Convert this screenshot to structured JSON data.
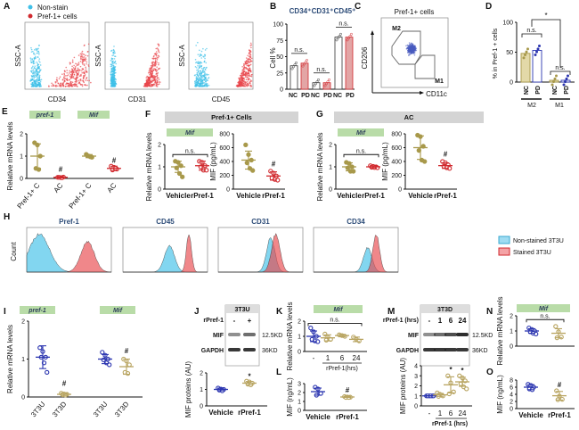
{
  "colors": {
    "olive": "#a8994b",
    "red": "#d12a2f",
    "blue": "#2b35b0",
    "tan": "#b8a460",
    "cyan": "#3fc0e8",
    "pink": "#e8464c",
    "gene_box": "#b9dca8",
    "header_box": "#d4d4d4",
    "bar_red": "#e3a5a5"
  },
  "panel_letters": [
    "A",
    "B",
    "C",
    "D",
    "E",
    "F",
    "G",
    "H",
    "I",
    "J",
    "K",
    "L",
    "M",
    "N",
    "O"
  ],
  "A": {
    "legend": [
      "Non-stain",
      "Pref-1+ cells"
    ],
    "ylabel": "SSC-A",
    "xlabels": [
      "CD34",
      "CD31",
      "CD45"
    ]
  },
  "B": {
    "ylabel": "Cell %",
    "yticks": [
      0,
      25,
      50,
      75,
      100
    ],
    "titles": [
      "CD34⁺",
      "CD31⁺",
      "CD45⁺"
    ],
    "group_labels": [
      "NC",
      "PD"
    ],
    "sig": "n.s.",
    "chart_data": {
      "type": "bar",
      "categories": [
        "CD34+",
        "CD31+",
        "CD45+"
      ],
      "ylim": [
        0,
        100
      ],
      "series": [
        {
          "name": "NC",
          "values": [
            36,
            10,
            80
          ]
        },
        {
          "name": "PD",
          "values": [
            40,
            10,
            80
          ]
        }
      ]
    }
  },
  "C": {
    "title": "Pref-1+ cells",
    "ylabel": "CD206",
    "xlabel": "CD11c",
    "gates": [
      "M2",
      "M1"
    ]
  },
  "D": {
    "ylabel": "% in Pref-1 + cells",
    "yticks": [
      0,
      50,
      100
    ],
    "group_labels": [
      "NC",
      "PD",
      "NC",
      "PD"
    ],
    "subsets": [
      "M2",
      "M1"
    ],
    "sig_main": "*",
    "sig_m2": "n.s.",
    "sig_m1": "n.s.",
    "chart_data": {
      "type": "bar",
      "categories": [
        "M2 NC",
        "M2 PD",
        "M1 NC",
        "M1 PD"
      ],
      "values": [
        48,
        53,
        3,
        3
      ],
      "ylim": [
        0,
        100
      ]
    }
  },
  "E": {
    "genes": [
      "pref-1",
      "Mif"
    ],
    "ylabel": "Relative mRNA levels",
    "yticks": [
      0,
      1,
      2
    ],
    "ymax": 2,
    "groups": [
      {
        "label": "Pref-1+ C",
        "mean": 1.0,
        "sd": 0.55,
        "points": [
          1.6,
          1.5,
          1.0,
          0.45,
          0.4
        ],
        "style": "olive"
      },
      {
        "label": "AC",
        "mean": 0.05,
        "sd": 0.03,
        "points": [
          0.05,
          0.04,
          0.06,
          0.05,
          0.03
        ],
        "style": "red"
      },
      {
        "label": "Pref-1+ C",
        "mean": 1.0,
        "sd": 0.07,
        "points": [
          1.08,
          1.0,
          0.95,
          1.02,
          0.97
        ],
        "style": "olive"
      },
      {
        "label": "AC",
        "mean": 0.45,
        "sd": 0.1,
        "points": [
          0.55,
          0.5,
          0.42,
          0.38,
          0.45
        ],
        "style": "red"
      }
    ],
    "marks": [
      {
        "text": "#",
        "group": 1,
        "y": 0.3
      },
      {
        "text": "#",
        "group": 3,
        "y": 0.7
      }
    ]
  },
  "F": {
    "header": "Pref-1+ Cells",
    "gene": "Mif",
    "mrna": {
      "ylabel": "Relative mRNA levels",
      "yticks": [
        0,
        1,
        2
      ],
      "ymax": 2,
      "groups": [
        {
          "label": "Vehicle",
          "mean": 1.0,
          "sd": 0.25,
          "points": [
            1.25,
            1.2,
            1.05,
            0.95,
            0.7,
            0.55
          ],
          "style": "olive"
        },
        {
          "label": "rPref-1",
          "mean": 1.05,
          "sd": 0.2,
          "points": [
            1.25,
            1.2,
            1.05,
            1.0,
            0.85,
            0.85
          ],
          "style": "red"
        }
      ],
      "brackets": [
        {
          "text": "n.s.",
          "from": 0,
          "to": 1,
          "y": 1.55
        }
      ]
    },
    "protein": {
      "ylabel": "MIF (pg/mL)",
      "yticks": [
        0,
        200,
        400,
        600,
        800
      ],
      "ymax": 800,
      "groups": [
        {
          "label": "Vehicle",
          "mean": 420,
          "sd": 130,
          "points": [
            640,
            500,
            420,
            380,
            300,
            270
          ],
          "style": "olive"
        },
        {
          "label": "rPref-1",
          "mean": 190,
          "sd": 60,
          "points": [
            260,
            230,
            190,
            160,
            140,
            130
          ],
          "style": "red"
        }
      ],
      "marks": [
        {
          "text": "#",
          "group": 1,
          "y": 330
        }
      ]
    }
  },
  "G": {
    "header": "AC",
    "gene": "Mif",
    "mrna": {
      "ylabel": "Relative mRNA levels",
      "yticks": [
        0,
        1,
        2
      ],
      "ymax": 2,
      "groups": [
        {
          "label": "Vehicle",
          "mean": 1.0,
          "sd": 0.18,
          "points": [
            1.2,
            1.15,
            1.0,
            0.95,
            0.8,
            0.8
          ],
          "style": "olive"
        },
        {
          "label": "rPref-1",
          "mean": 1.0,
          "sd": 0.05,
          "points": [
            1.05,
            1.02,
            1.0,
            0.98,
            0.97,
            0.96
          ],
          "style": "red"
        }
      ],
      "brackets": [
        {
          "text": "n.s.",
          "from": 0,
          "to": 1,
          "y": 1.55
        }
      ]
    },
    "protein": {
      "ylabel": "MIF (pg/mL)",
      "yticks": [
        0,
        200,
        400,
        600,
        800
      ],
      "ymax": 800,
      "groups": [
        {
          "label": "Vehicle",
          "mean": 600,
          "sd": 170,
          "points": [
            780,
            760,
            620,
            560,
            420,
            400
          ],
          "style": "olive"
        },
        {
          "label": "rPref-1",
          "mean": 340,
          "sd": 40,
          "points": [
            400,
            380,
            350,
            330,
            310,
            300
          ],
          "style": "red"
        }
      ],
      "marks": [
        {
          "text": "#",
          "group": 1,
          "y": 470
        }
      ]
    }
  },
  "H": {
    "ylabel": "Count",
    "titles": [
      "Pref-1",
      "CD45",
      "CD31",
      "CD34"
    ],
    "legend": [
      "Non-stained 3T3U",
      "Stained 3T3U"
    ]
  },
  "I": {
    "genes": [
      "pref-1",
      "Mif"
    ],
    "ylabel": "Relative mRNA levels",
    "yticks": [
      0,
      1,
      2
    ],
    "ymax": 2,
    "groups": [
      {
        "label": "3T3U",
        "mean": 1.05,
        "sd": 0.3,
        "points": [
          1.3,
          1.2,
          1.05,
          1.05,
          0.9,
          0.65
        ],
        "style": "blue"
      },
      {
        "label": "3T3D",
        "mean": 0.07,
        "sd": 0.03,
        "points": [
          0.1,
          0.08,
          0.07,
          0.06,
          0.05
        ],
        "style": "tan"
      },
      {
        "label": "3T3U",
        "mean": 1.0,
        "sd": 0.12,
        "points": [
          1.18,
          1.1,
          1.0,
          0.98,
          0.9,
          0.85
        ],
        "style": "blue"
      },
      {
        "label": "3T3D",
        "mean": 0.8,
        "sd": 0.2,
        "points": [
          1.0,
          0.95,
          0.85,
          0.65,
          0.62
        ],
        "style": "tan"
      }
    ],
    "marks": [
      {
        "text": "#",
        "group": 1,
        "y": 0.3
      },
      {
        "text": "#",
        "group": 3,
        "y": 1.15
      }
    ]
  },
  "J": {
    "blot_title": "3T3U",
    "treat_label": "rPref-1",
    "lanes": [
      "-",
      "+"
    ],
    "bands": [
      "MIF",
      "GAPDH"
    ],
    "sizes": [
      "12.5KD",
      "36KD"
    ],
    "ylabel": "MIF proteins (AU)",
    "yticks": [
      0,
      1,
      2
    ],
    "ymax": 2,
    "groups": [
      {
        "label": "Vehicle",
        "mean": 1.0,
        "sd": 0.08,
        "points": [
          1.08,
          1.02,
          1.0,
          0.96,
          0.92
        ],
        "style": "blue"
      },
      {
        "label": "rPref-1",
        "mean": 1.38,
        "sd": 0.1,
        "points": [
          1.5,
          1.45,
          1.38,
          1.32,
          1.28
        ],
        "style": "tan"
      }
    ],
    "marks": [
      {
        "text": "*",
        "group": 1,
        "y": 1.65
      }
    ]
  },
  "K": {
    "gene": "Mif",
    "ylabel": "Relative mRNA levels",
    "yticks": [
      0,
      1,
      2
    ],
    "ymax": 2,
    "axis_caption": "rPref-1(hrs)",
    "groups": [
      {
        "label": "-",
        "mean": 1.0,
        "sd": 0.35,
        "points": [
          1.55,
          1.3,
          1.0,
          0.8,
          0.7,
          0.65
        ],
        "style": "blue"
      },
      {
        "label": "1",
        "mean": 0.9,
        "sd": 0.2,
        "points": [
          1.15,
          0.95,
          0.8,
          0.75
        ],
        "style": "tan"
      },
      {
        "label": "6",
        "mean": 1.05,
        "sd": 0.08,
        "points": [
          1.1,
          1.05,
          1.0
        ],
        "style": "tan"
      },
      {
        "label": "24",
        "mean": 0.8,
        "sd": 0.15,
        "points": [
          0.95,
          0.8,
          0.7
        ],
        "style": "tan"
      }
    ],
    "brackets": [
      {
        "text": "n.s.",
        "from": 0,
        "to": 3,
        "y": 1.85
      }
    ]
  },
  "L": {
    "ylabel": "MIF (ng/mL)",
    "yticks": [
      0,
      1,
      2,
      3
    ],
    "ymax": 3,
    "groups": [
      {
        "label": "Vehicle",
        "mean": 2.1,
        "sd": 0.4,
        "points": [
          2.6,
          2.4,
          1.9,
          1.7
        ],
        "style": "blue"
      },
      {
        "label": "rPref-1",
        "mean": 1.5,
        "sd": 0.05,
        "points": [
          1.55,
          1.5,
          1.48,
          1.45,
          1.45
        ],
        "style": "tan"
      }
    ],
    "marks": [
      {
        "text": "#",
        "group": 1,
        "y": 2.0
      }
    ]
  },
  "M": {
    "blot_title": "3T3D",
    "treat_label": "rPref-1 (hrs)",
    "lanes": [
      "-",
      "1",
      "6",
      "24"
    ],
    "bands": [
      "MIF",
      "GAPDH"
    ],
    "sizes": [
      "12.5KD",
      "36KD"
    ],
    "ylabel": "MIF proteins (AU)",
    "yticks": [
      0,
      1,
      2,
      3,
      4
    ],
    "ymax": 4,
    "axis_caption": "rPref-1 (hrs)",
    "groups": [
      {
        "label": "-",
        "mean": 1.0,
        "sd": 0.02,
        "points": [
          1.0,
          1.0,
          1.0,
          1.0,
          1.0,
          1.0
        ],
        "style": "blue"
      },
      {
        "label": "1",
        "mean": 1.1,
        "sd": 0.15,
        "points": [
          1.3,
          1.15,
          1.0,
          0.95
        ],
        "style": "tan"
      },
      {
        "label": "6",
        "mean": 2.1,
        "sd": 0.8,
        "points": [
          3.0,
          2.3,
          1.4,
          1.2
        ],
        "style": "tan"
      },
      {
        "label": "24",
        "mean": 2.4,
        "sd": 0.45,
        "points": [
          3.0,
          2.8,
          2.5,
          2.2,
          1.9,
          1.7
        ],
        "style": "tan"
      }
    ],
    "marks": [
      {
        "text": "*",
        "group": 2,
        "y": 3.4
      },
      {
        "text": "*",
        "group": 3,
        "y": 3.3
      }
    ]
  },
  "N": {
    "gene": "Mif",
    "ylabel": "Relative mRNA levels",
    "yticks": [
      0,
      1,
      2
    ],
    "ymax": 2,
    "groups": [
      {
        "label": "Vehicle",
        "mean": 1.0,
        "sd": 0.15,
        "points": [
          1.2,
          1.1,
          1.0,
          0.95,
          0.85,
          0.8
        ],
        "style": "blue"
      },
      {
        "label": "rPref-1",
        "mean": 0.85,
        "sd": 0.3,
        "points": [
          1.3,
          0.95,
          0.6,
          0.55
        ],
        "style": "tan"
      }
    ],
    "brackets": [
      {
        "text": "n.s.",
        "from": 0,
        "to": 1,
        "y": 1.75
      }
    ]
  },
  "O": {
    "ylabel": "MIF (ng/mL)",
    "yticks": [
      0,
      2,
      4,
      6,
      8
    ],
    "ymax": 8,
    "groups": [
      {
        "label": "Vehicle",
        "mean": 6.0,
        "sd": 0.7,
        "points": [
          6.8,
          6.5,
          6.0,
          5.5,
          5.3
        ],
        "style": "blue"
      },
      {
        "label": "rPref-1",
        "mean": 3.6,
        "sd": 1.2,
        "points": [
          5.0,
          3.5,
          2.6,
          2.5
        ],
        "style": "tan"
      }
    ],
    "marks": [
      {
        "text": "#",
        "group": 1,
        "y": 6.0
      }
    ]
  }
}
